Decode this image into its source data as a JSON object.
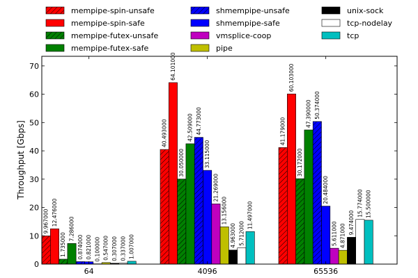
{
  "chart_data": {
    "type": "bar",
    "ylabel": "Throughput [Gbps]",
    "xlabel": "",
    "ylim": [
      0,
      73.4
    ],
    "yticks": [
      0,
      10,
      20,
      30,
      40,
      50,
      60,
      70
    ],
    "grid": false,
    "legend_position": "top",
    "categories": [
      "64",
      "4096",
      "65536"
    ],
    "series": [
      {
        "name": "mempipe-spin-unsafe",
        "color": "#ff0000",
        "hatch": "diag",
        "values": [
          9.967,
          40.493,
          41.179
        ],
        "labels": [
          "9.967000",
          "40.493000",
          "41.179000"
        ]
      },
      {
        "name": "mempipe-spin-safe",
        "color": "#ff0000",
        "hatch": "none",
        "values": [
          12.476,
          64.101,
          60.103
        ],
        "labels": [
          "12.476000",
          "64.101000",
          "60.103000"
        ]
      },
      {
        "name": "mempipe-futex-unsafe",
        "color": "#008000",
        "hatch": "diag",
        "values": [
          1.735,
          30.05,
          30.172
        ],
        "labels": [
          "1.735000",
          "30.050000",
          "30.172000"
        ]
      },
      {
        "name": "mempipe-futex-safe",
        "color": "#008000",
        "hatch": "none",
        "values": [
          7.286,
          42.509,
          47.39
        ],
        "labels": [
          "7.286000",
          "42.509000",
          "47.390000"
        ]
      },
      {
        "name": "shmempipe-unsafe",
        "color": "#0000ff",
        "hatch": "diag",
        "values": [
          0.874,
          44.773,
          50.374
        ],
        "labels": [
          "0.874000",
          "44.773000",
          "50.374000"
        ]
      },
      {
        "name": "shmempipe-safe",
        "color": "#0000ff",
        "hatch": "none",
        "values": [
          0.821,
          33.115,
          20.484
        ],
        "labels": [
          "0.821000",
          "33.115000",
          "20.484000"
        ]
      },
      {
        "name": "vmsplice-coop",
        "color": "#bf00bf",
        "hatch": "none",
        "values": [
          0.1,
          21.269,
          5.611
        ],
        "labels": [
          "0.100000",
          "21.269000",
          "5.611000"
        ]
      },
      {
        "name": "pipe",
        "color": "#bfbf00",
        "hatch": "none",
        "values": [
          0.547,
          13.156,
          4.871
        ],
        "labels": [
          "0.547000",
          "13.156000",
          "4.871000"
        ]
      },
      {
        "name": "unix-sock",
        "color": "#000000",
        "hatch": "none",
        "values": [
          0.307,
          4.963,
          9.474
        ],
        "labels": [
          "0.307000",
          "4.963000",
          "9.474000"
        ]
      },
      {
        "name": "tcp-nodelay",
        "color": "#ffffff",
        "hatch": "none",
        "values": [
          0.337,
          5.712,
          15.774
        ],
        "labels": [
          "0.337000",
          "5.712000",
          "15.774000"
        ]
      },
      {
        "name": "tcp",
        "color": "#00bfbf",
        "hatch": "none",
        "values": [
          1.007,
          11.497,
          15.5
        ],
        "labels": [
          "1.007000",
          "11.497000",
          "15.500000"
        ]
      }
    ]
  }
}
